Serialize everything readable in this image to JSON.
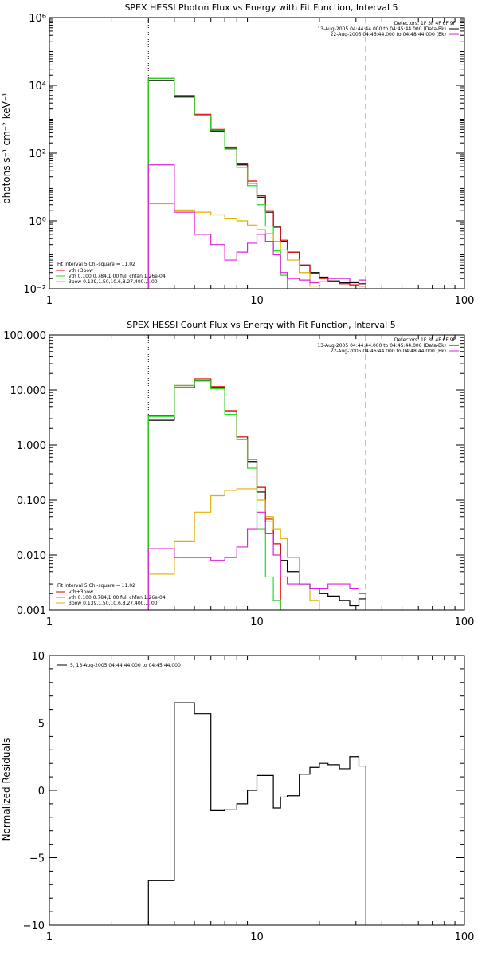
{
  "colors": {
    "total": "#000000",
    "fit": "#e00000",
    "vth": "#22dd22",
    "pow": "#e0b000",
    "residual": "#dd22dd"
  },
  "chart_data": [
    {
      "type": "line",
      "title": "SPEX HESSI Photon Flux vs Energy with Fit Function, Interval 5",
      "ylabel": "photons s⁻¹ cm⁻² keV⁻¹",
      "xlabel": "",
      "xscale": "log",
      "yscale": "log",
      "xlim": [
        1,
        100
      ],
      "ylim": [
        0.01,
        1000000
      ],
      "x_ticks": [
        "1",
        "10",
        "100"
      ],
      "y_ticks": [
        "10⁻²",
        "10⁰",
        "10²",
        "10⁴",
        "10⁶"
      ],
      "vlines": [
        {
          "x": 3,
          "style": "dotted"
        },
        {
          "x": 33.5,
          "style": "dashed"
        }
      ],
      "info_lines": [
        "Detectors: 1F 3F 4F 6F 9F",
        "13-Aug-2005 04:44:44.000 to 04:45:44.000 (Data-Bk)",
        "22-Aug-2005 04:46:44.000 to 04:48:44.000 (Bk)"
      ],
      "fit_text": [
        "Fit Interval 5   Chi-square = 11.02",
        "vth+3pow",
        "vth 0.100,0.784,1.00  full chfan 1.26e-04",
        "3pow 0.139,1.50,10.6,8.27,400.,1.00"
      ],
      "edges": [
        3,
        4,
        5,
        6,
        7,
        8,
        9,
        10,
        11,
        12,
        13,
        14,
        16,
        18,
        20,
        22,
        25,
        28,
        31,
        33.5
      ],
      "series": [
        {
          "name": "Data-Bk",
          "color_key": "total",
          "values": [
            14000,
            4500,
            1300,
            450,
            140,
            45,
            13,
            5,
            1.8,
            0.65,
            0.25,
            0.12,
            0.05,
            0.03,
            0.022,
            0.017,
            0.015,
            0.015,
            0.014
          ]
        },
        {
          "name": "vth+3pow",
          "color_key": "fit",
          "values": [
            16000,
            5000,
            1400,
            500,
            150,
            48,
            15,
            5.5,
            2,
            0.7,
            0.27,
            0.12,
            0.05,
            0.028,
            0.02,
            0.016,
            0.014,
            0.013,
            0.012
          ]
        },
        {
          "name": "vth",
          "color_key": "vth",
          "values": [
            16000,
            4800,
            1300,
            480,
            130,
            38,
            11,
            3,
            0.7,
            0.13,
            0.025,
            0.009
          ]
        },
        {
          "name": "3pow",
          "color_key": "pow",
          "values": [
            3.2,
            2.1,
            1.8,
            1.5,
            1.2,
            1.0,
            0.75,
            0.55,
            0.42,
            0.25,
            0.14,
            0.07,
            0.03,
            0.012
          ]
        },
        {
          "name": "Bk",
          "color_key": "residual",
          "values": [
            45,
            1.8,
            0.4,
            0.2,
            0.07,
            0.12,
            0.22,
            0.4,
            0.25,
            0.1,
            0.03,
            0.02,
            0.018,
            0.015,
            0.016,
            0.02,
            0.02,
            0.016,
            0.018
          ]
        }
      ]
    },
    {
      "type": "line",
      "title": "SPEX HESSI Count Flux vs Energy with Fit Function, Interval 5",
      "ylabel": "",
      "xlabel": "",
      "xscale": "log",
      "yscale": "log",
      "xlim": [
        1,
        100
      ],
      "ylim": [
        0.001,
        100
      ],
      "x_ticks": [
        "1",
        "10",
        "100"
      ],
      "y_ticks": [
        "0.001",
        "0.010",
        "0.100",
        "1.000",
        "10.000",
        "100.000"
      ],
      "vlines": [
        {
          "x": 3,
          "style": "dotted"
        },
        {
          "x": 33.5,
          "style": "dashed"
        }
      ],
      "info_lines": [
        "Detectors: 1F 3F 4F 6F 9F",
        "13-Aug-2005 04:44:44.000 to 04:45:44.000 (Data-Bk)",
        "22-Aug-2005 04:46:44.000 to 04:48:44.000 (Bk)"
      ],
      "fit_text": [
        "Fit Interval 5   Chi-square = 11.02",
        "vth+3pow",
        "vth 0.100,0.784,1.00  full chfan 1.26e-04",
        "3pow 0.139,1.50,10.6,8.27,400.,1.00"
      ],
      "edges": [
        3,
        4,
        5,
        6,
        7,
        8,
        9,
        10,
        11,
        12,
        13,
        14,
        16,
        18,
        20,
        22,
        25,
        28,
        31,
        33.5
      ],
      "series": [
        {
          "name": "Data-Bk",
          "color_key": "total",
          "values": [
            2.8,
            11,
            15,
            11,
            4,
            1.4,
            0.5,
            0.14,
            0.04,
            0.016,
            0.008,
            0.005,
            0.003,
            0.0025,
            0.002,
            0.0018,
            0.0015,
            0.0012,
            0.0016
          ]
        },
        {
          "name": "vth+3pow",
          "color_key": "fit",
          "values": [
            3.4,
            12,
            16,
            11.5,
            4.2,
            1.4,
            0.55,
            0.17,
            0.045,
            0.016
          ]
        },
        {
          "name": "vth",
          "color_key": "vth",
          "values": [
            3.3,
            12,
            14.5,
            10.5,
            3.6,
            1.25,
            0.38,
            0.03,
            0.004,
            0.0015
          ]
        },
        {
          "name": "3pow",
          "color_key": "pow",
          "values": [
            0.0045,
            0.018,
            0.06,
            0.12,
            0.15,
            0.16,
            0.16,
            0.1,
            0.05,
            0.03,
            0.02,
            0.009,
            0.003,
            0.0015
          ]
        },
        {
          "name": "Bk",
          "color_key": "residual",
          "values": [
            0.013,
            0.009,
            0.009,
            0.008,
            0.009,
            0.014,
            0.03,
            0.06,
            0.025,
            0.01,
            0.004,
            0.003,
            0.003,
            0.0025,
            0.0025,
            0.003,
            0.003,
            0.0025,
            0.002
          ]
        }
      ]
    },
    {
      "type": "line",
      "title": "",
      "ylabel": "Normalized Residuals",
      "xlabel": "",
      "xscale": "log",
      "yscale": "linear",
      "xlim": [
        1,
        100
      ],
      "ylim": [
        -10,
        10
      ],
      "x_ticks": [
        "1",
        "10",
        "100"
      ],
      "y_ticks": [
        "−10",
        "−5",
        "0",
        "5",
        "10"
      ],
      "legend": "5, 13-Aug-2005 04:44:44.000 to 04:45:44.000",
      "edges": [
        3,
        4,
        5,
        6,
        7,
        8,
        9,
        10,
        11,
        12,
        13,
        14,
        16,
        18,
        20,
        22,
        25,
        28,
        31,
        33.5
      ],
      "series": [
        {
          "name": "5",
          "color_key": "total",
          "values": [
            -6.7,
            6.5,
            5.7,
            -1.5,
            -1.4,
            -1.0,
            0.0,
            1.1,
            1.1,
            -1.3,
            -0.5,
            -0.4,
            1.2,
            1.7,
            2.0,
            1.9,
            1.6,
            2.5,
            1.8
          ]
        }
      ]
    }
  ]
}
